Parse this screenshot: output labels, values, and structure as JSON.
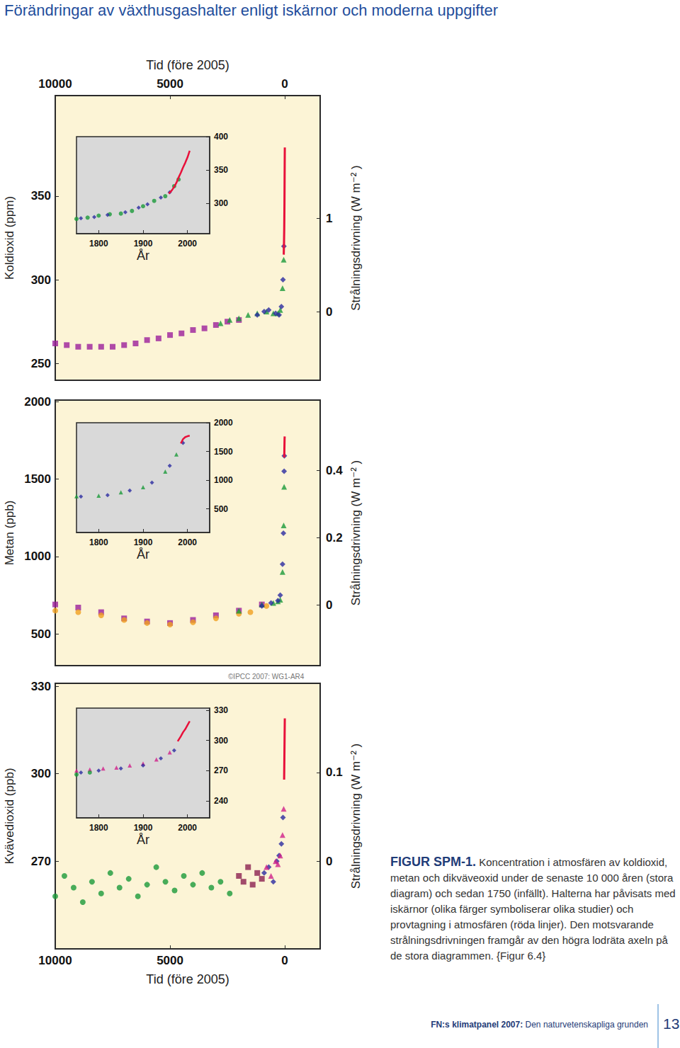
{
  "header": {
    "title": "Förändringar av växthusgashalter enligt iskärnor och moderna uppgifter"
  },
  "credit": "©IPCC 2007: WG1-AR4",
  "caption": {
    "label": "FIGUR SPM-1.",
    "text": "Koncentration i atmosfären av koldioxid, metan och dikväveoxid under de senaste 10 000 åren (stora diagram) och sedan 1750 (infällt). Halterna har påvisats med iskärnor (olika färger symboliserar olika studier) och provtagning i atmosfären (röda linjer). Den motsvarande strålningsdrivningen framgår av den högra lodräta axeln på de stora diagrammen. {Figur 6.4}"
  },
  "footer": {
    "publication": "FN:s klimatpanel 2007:",
    "subtitle": "Den naturvetenskapliga grunden",
    "page": "13"
  },
  "chart_data": [
    {
      "type": "scatter",
      "xlabel": "Tid (före 2005)",
      "ylabel": "Koldioxid (ppm)",
      "y2label": "Strålningsdrivning (W m⁻² )",
      "xlim": [
        10000,
        -1540
      ],
      "xticks": [
        10000,
        5000,
        0
      ],
      "ylim": [
        240,
        410
      ],
      "yticks": [
        250,
        300,
        350
      ],
      "y2lim": [
        -0.73,
        2.31
      ],
      "y2ticks": [
        0,
        1
      ],
      "grid": false,
      "series": [
        {
          "color": "#9b1f9b",
          "marker": "square",
          "x": [
            10000,
            9500,
            9000,
            8500,
            8000,
            7500,
            7000,
            6500,
            6000,
            5500,
            5000,
            4500,
            4000,
            3500,
            3000,
            2500,
            2000
          ],
          "values": [
            262,
            261,
            260,
            260,
            260,
            260,
            261,
            262,
            264,
            265,
            267,
            268,
            270,
            271,
            273,
            275,
            276
          ]
        },
        {
          "color": "#1a9a3a",
          "marker": "triangle",
          "x": [
            2800,
            2400,
            2000,
            1600,
            1200,
            800,
            500,
            300,
            200,
            100,
            50
          ],
          "values": [
            274,
            276,
            277,
            279,
            280,
            281,
            280,
            280,
            282,
            295,
            312
          ]
        },
        {
          "color": "#2b2ba0",
          "marker": "diamond",
          "x": [
            1200,
            900,
            700,
            400,
            250,
            150,
            80,
            40
          ],
          "values": [
            279,
            281,
            282,
            280,
            279,
            284,
            300,
            320
          ]
        },
        {
          "color": "#e8103a",
          "type": "line",
          "line_style": "solid",
          "x": [
            47,
            35,
            25,
            15,
            5,
            0
          ],
          "values": [
            315,
            322,
            331,
            346,
            369,
            379
          ]
        }
      ],
      "inset": {
        "type": "scatter",
        "xlabel": "År",
        "xlim": [
          1750,
          2050
        ],
        "xticks": [
          1800,
          1900,
          2000
        ],
        "ylim": [
          255,
          400
        ],
        "yticks": [
          300,
          350,
          400
        ],
        "grid": false,
        "series": [
          {
            "color": "#1a9a3a",
            "marker": "circle",
            "x": [
              1750,
              1775,
              1800,
              1825,
              1850,
              1875,
              1900,
              1925,
              1950,
              1970,
              1980
            ],
            "values": [
              277,
              279,
              282,
              284,
              285,
              289,
              296,
              304,
              311,
              326,
              336
            ]
          },
          {
            "color": "#2b2ba0",
            "marker": "diamond",
            "x": [
              1760,
              1790,
              1820,
              1860,
              1890,
              1910,
              1940,
              1960
            ],
            "values": [
              278,
              280,
              283,
              287,
              294,
              299,
              309,
              317
            ]
          },
          {
            "color": "#e8103a",
            "type": "line",
            "line_style": "solid",
            "x": [
              1958,
              1965,
              1970,
              1975,
              1980,
              1985,
              1990,
              1995,
              2000,
              2005
            ],
            "values": [
              315,
              320,
              325,
              331,
              339,
              346,
              354,
              361,
              369,
              379
            ]
          }
        ]
      }
    },
    {
      "type": "scatter",
      "ylabel": "Metan (ppb)",
      "y2label": "Strålningsdrivning (W m⁻² )",
      "xlim": [
        10000,
        -1540
      ],
      "ylim": [
        295,
        2010
      ],
      "yticks": [
        500,
        1000,
        1500,
        2000
      ],
      "y2lim": [
        -0.18,
        0.61
      ],
      "y2ticks": [
        0,
        0.2,
        0.4
      ],
      "tick_labels": "y",
      "grid": false,
      "series": [
        {
          "color": "#9b1f9b",
          "marker": "square",
          "x": [
            10000,
            9000,
            8000,
            7000,
            6000,
            5000,
            4000,
            3000,
            2000,
            1000
          ],
          "values": [
            690,
            670,
            640,
            600,
            580,
            570,
            590,
            620,
            650,
            690
          ]
        },
        {
          "color": "#f0a020",
          "marker": "circle",
          "x": [
            10000,
            9000,
            8000,
            7000,
            6000,
            5000,
            4000,
            3000,
            2000,
            1500,
            800
          ],
          "values": [
            650,
            640,
            620,
            590,
            570,
            560,
            575,
            600,
            630,
            640,
            680
          ]
        },
        {
          "color": "#1a9a3a",
          "marker": "triangle",
          "x": [
            2000,
            1000,
            500,
            300,
            200,
            100,
            50,
            30
          ],
          "values": [
            650,
            690,
            700,
            710,
            720,
            900,
            1200,
            1450
          ]
        },
        {
          "color": "#2b2ba0",
          "marker": "diamond",
          "x": [
            1000,
            600,
            300,
            200,
            100,
            60,
            30,
            20
          ],
          "values": [
            680,
            700,
            715,
            750,
            950,
            1150,
            1550,
            1650
          ]
        },
        {
          "color": "#e8103a",
          "type": "line",
          "line_style": "solid",
          "x": [
            25,
            15,
            10,
            5,
            0
          ],
          "values": [
            1640,
            1720,
            1760,
            1775,
            1774
          ]
        }
      ],
      "inset": {
        "type": "scatter",
        "xlabel": "År",
        "xlim": [
          1750,
          2050
        ],
        "xticks": [
          1800,
          1900,
          2000
        ],
        "ylim": [
          90,
          2000
        ],
        "yticks": [
          500,
          1000,
          1500,
          2000
        ],
        "grid": false,
        "series": [
          {
            "color": "#1a9a3a",
            "marker": "triangle",
            "x": [
              1750,
              1800,
              1850,
              1900,
              1950,
              1975
            ],
            "values": [
              720,
              730,
              790,
              880,
              1150,
              1450
            ]
          },
          {
            "color": "#2b2ba0",
            "marker": "diamond",
            "x": [
              1760,
              1820,
              1870,
              1920,
              1960,
              1990
            ],
            "values": [
              715,
              740,
              820,
              960,
              1250,
              1650
            ]
          },
          {
            "color": "#e8103a",
            "type": "line",
            "line_style": "solid",
            "x": [
              1985,
              1990,
              1995,
              2000,
              2005
            ],
            "values": [
              1640,
              1715,
              1750,
              1765,
              1774
            ]
          }
        ]
      }
    },
    {
      "type": "scatter",
      "xlabel": "Tid (före 2005)",
      "ylabel": "Kvävedioxid (ppb)",
      "y2label": "Strålningsdrivning (W m⁻² )",
      "xlim": [
        10000,
        -1540
      ],
      "xticks": [
        10000,
        5000,
        0
      ],
      "ylim": [
        240,
        331
      ],
      "yticks": [
        270,
        300,
        330
      ],
      "y2lim": [
        -0.098,
        0.2
      ],
      "y2ticks": [
        0,
        0.1
      ],
      "grid": false,
      "series": [
        {
          "color": "#1a9a3a",
          "marker": "circle",
          "x": [
            10000,
            9600,
            9200,
            8800,
            8400,
            8000,
            7600,
            7200,
            6800,
            6400,
            6000,
            5600,
            5200,
            4800,
            4400,
            4000,
            3600,
            3200,
            2800,
            2400
          ],
          "values": [
            258,
            265,
            261,
            256,
            263,
            259,
            266,
            261,
            264,
            258,
            262,
            268,
            263,
            260,
            265,
            262,
            266,
            261,
            263,
            259
          ]
        },
        {
          "color": "#8b2050",
          "marker": "square",
          "x": [
            2000,
            1800,
            1600,
            1400,
            1200,
            1000
          ],
          "values": [
            265,
            263,
            268,
            262,
            266,
            264
          ]
        },
        {
          "color": "#2b2ba0",
          "marker": "diamond",
          "x": [
            900,
            700,
            500,
            350,
            250,
            150,
            80
          ],
          "values": [
            266,
            268,
            263,
            270,
            272,
            276,
            285
          ]
        },
        {
          "color": "#d0208a",
          "marker": "triangle",
          "x": [
            800,
            600,
            400,
            300,
            200,
            100,
            50
          ],
          "values": [
            268,
            265,
            270,
            269,
            272,
            279,
            288
          ]
        },
        {
          "color": "#e8103a",
          "type": "line",
          "line_style": "solid",
          "x": [
            30,
            20,
            10,
            0
          ],
          "values": [
            298,
            305,
            312,
            319
          ]
        }
      ],
      "inset": {
        "type": "scatter",
        "xlabel": "År",
        "xlim": [
          1750,
          2050
        ],
        "xticks": [
          1800,
          1900,
          2000
        ],
        "ylim": [
          223,
          332
        ],
        "yticks": [
          240,
          270,
          300,
          330
        ],
        "grid": false,
        "series": [
          {
            "color": "#d0208a",
            "marker": "triangle",
            "x": [
              1750,
              1780,
              1810,
              1840,
              1870,
              1900,
              1930,
              1960
            ],
            "values": [
              270,
              271,
              272,
              273,
              275,
              277,
              281,
              288
            ]
          },
          {
            "color": "#2b2ba0",
            "marker": "diamond",
            "x": [
              1760,
              1800,
              1850,
              1900,
              1940,
              1970
            ],
            "values": [
              268,
              270,
              272,
              275,
              282,
              290
            ]
          },
          {
            "color": "#1a9a3a",
            "marker": "circle",
            "x": [
              1750,
              1780
            ],
            "values": [
              266,
              268
            ]
          },
          {
            "color": "#e8103a",
            "type": "line",
            "line_style": "solid",
            "x": [
              1978,
              1985,
              1990,
              1995,
              2000,
              2005
            ],
            "values": [
              299,
              304,
              308,
              311,
              315,
              319
            ]
          }
        ]
      }
    }
  ]
}
